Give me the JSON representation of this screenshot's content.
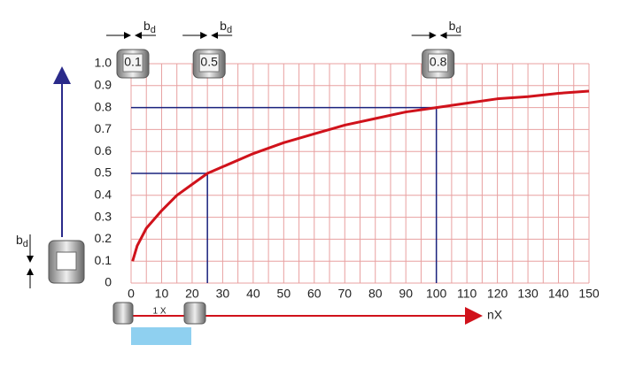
{
  "chart_data": {
    "type": "line",
    "x": [
      0.5,
      2,
      5,
      10,
      15,
      20,
      25,
      30,
      40,
      50,
      60,
      70,
      80,
      90,
      100,
      110,
      120,
      130,
      140,
      150
    ],
    "values": [
      0.1,
      0.17,
      0.25,
      0.33,
      0.4,
      0.45,
      0.5,
      0.53,
      0.59,
      0.64,
      0.68,
      0.72,
      0.75,
      0.78,
      0.8,
      0.82,
      0.84,
      0.85,
      0.865,
      0.875
    ],
    "color": "#d0121b",
    "xlim": [
      0,
      150
    ],
    "xticks": [
      0,
      10,
      20,
      30,
      40,
      50,
      60,
      70,
      80,
      90,
      100,
      110,
      120,
      130,
      140,
      150
    ],
    "ylim": [
      0,
      1
    ],
    "yticks": [
      0,
      0.1,
      0.2,
      0.3,
      0.4,
      0.5,
      0.6,
      0.7,
      0.8,
      0.9,
      {
        "value": 1,
        "label": "1.0"
      }
    ],
    "grid": true,
    "grid_color": "#e8a0a0",
    "xlabel": "nX",
    "guides": [
      {
        "x": 25,
        "y": 0.5
      },
      {
        "x": 100,
        "y": 0.8
      }
    ],
    "guide_color": "#1a237e",
    "lenses": [
      {
        "x": 0,
        "label": "0.1"
      },
      {
        "x": 25,
        "label": "0.5"
      },
      {
        "x": 100,
        "label": "0.8"
      }
    ],
    "spacing_label": "1 X",
    "bd": {
      "main": "b",
      "sub": "d"
    }
  }
}
